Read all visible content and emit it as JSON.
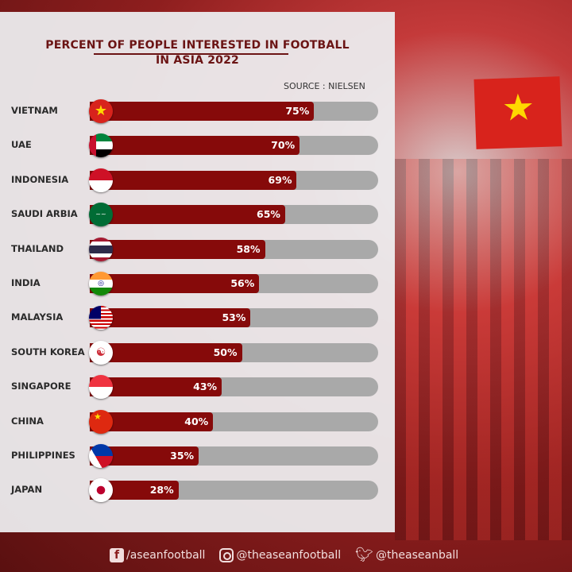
{
  "chart_data": {
    "type": "bar",
    "orientation": "horizontal",
    "title": "PERCENT OF PEOPLE INTERESTED IN FOOTBALL IN ASIA 2022",
    "title_lines": [
      "PERCENT OF PEOPLE INTERESTED IN FOOTBALL",
      "IN ASIA 2022"
    ],
    "source": "SOURCE : NIELSEN",
    "categories": [
      "VIETNAM",
      "UAE",
      "INDONESIA",
      "SAUDI ARBIA",
      "THAILAND",
      "INDIA",
      "MALAYSIA",
      "SOUTH KOREA",
      "SINGAPORE",
      "CHINA",
      "PHILIPPINES",
      "JAPAN"
    ],
    "values": [
      75,
      70,
      69,
      65,
      58,
      56,
      53,
      50,
      43,
      40,
      35,
      28
    ],
    "value_labels": [
      "75%",
      "70%",
      "69%",
      "65%",
      "58%",
      "56%",
      "53%",
      "50%",
      "43%",
      "40%",
      "35%",
      "28%"
    ],
    "xlim": [
      0,
      100
    ],
    "bar_color": "#860a0a",
    "track_color": "#a9a9a9",
    "flag_icons": [
      "vietnam-flag",
      "uae-flag",
      "indonesia-flag",
      "saudi-arabia-flag",
      "thailand-flag",
      "india-flag",
      "malaysia-flag",
      "south-korea-flag",
      "singapore-flag",
      "china-flag",
      "philippines-flag",
      "japan-flag"
    ]
  },
  "footer": {
    "facebook": "/aseanfootball",
    "instagram": "@theaseanfootball",
    "twitter": "@theaseanball"
  }
}
